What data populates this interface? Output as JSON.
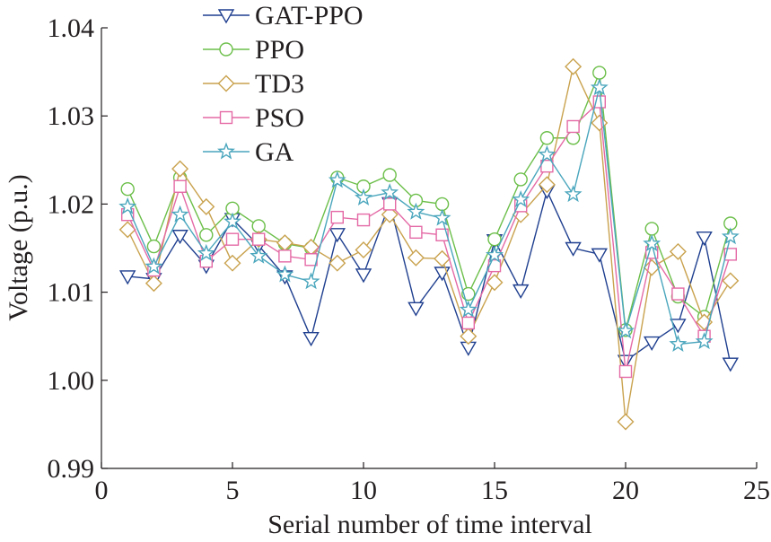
{
  "chart_data": {
    "type": "line",
    "xlabel": "Serial number of time interval",
    "ylabel": "Voltage (p.u.)",
    "xlim": [
      0,
      25
    ],
    "ylim": [
      0.99,
      1.04
    ],
    "x_ticks": [
      "0",
      "5",
      "10",
      "15",
      "20",
      "25"
    ],
    "y_ticks": [
      "0.99",
      "1.00",
      "1.01",
      "1.02",
      "1.03",
      "1.04"
    ],
    "grid": false,
    "legend_position": "top-left",
    "x": [
      1,
      2,
      3,
      4,
      5,
      6,
      7,
      8,
      9,
      10,
      11,
      12,
      13,
      14,
      15,
      16,
      17,
      18,
      19,
      20,
      21,
      22,
      23,
      24
    ],
    "series": [
      {
        "name": "GAT-PPO",
        "color": "#1f3f8f",
        "marker": "triangle-down",
        "values": [
          1.0118,
          1.0115,
          1.0164,
          1.013,
          1.0183,
          1.0153,
          1.0118,
          1.0048,
          1.0166,
          1.012,
          1.0201,
          1.0082,
          1.0122,
          1.0037,
          1.0159,
          1.0102,
          1.0215,
          1.015,
          1.0143,
          1.0022,
          1.0043,
          1.0063,
          1.0162,
          1.0019
        ]
      },
      {
        "name": "PPO",
        "color": "#6cbf4a",
        "marker": "circle",
        "values": [
          1.0217,
          1.0152,
          1.023,
          1.0165,
          1.0195,
          1.0175,
          1.0155,
          1.015,
          1.023,
          1.022,
          1.0233,
          1.0204,
          1.02,
          1.0098,
          1.016,
          1.0228,
          1.0275,
          1.0275,
          1.0349,
          1.0057,
          1.0172,
          1.0095,
          1.0072,
          1.0178
        ]
      },
      {
        "name": "TD3",
        "color": "#c9a24e",
        "marker": "diamond",
        "values": [
          1.0171,
          1.011,
          1.024,
          1.0197,
          1.0133,
          1.016,
          1.0156,
          1.0151,
          1.0133,
          1.0148,
          1.0188,
          1.0139,
          1.0138,
          1.005,
          1.0111,
          1.0188,
          1.0222,
          1.0356,
          1.0292,
          0.9953,
          1.0128,
          1.0146,
          1.0066,
          1.0113
        ]
      },
      {
        "name": "PSO",
        "color": "#e46aa6",
        "marker": "square",
        "values": [
          1.0188,
          1.0125,
          1.022,
          1.0135,
          1.016,
          1.016,
          1.0141,
          1.0137,
          1.0185,
          1.0182,
          1.02,
          1.0168,
          1.0165,
          1.0065,
          1.013,
          1.0198,
          1.0243,
          1.0288,
          1.0316,
          1.001,
          1.0145,
          1.0098,
          1.005,
          1.0143
        ]
      },
      {
        "name": "GA",
        "color": "#4aa6bd",
        "marker": "star",
        "values": [
          1.0197,
          1.0129,
          1.0188,
          1.0144,
          1.018,
          1.0141,
          1.012,
          1.0112,
          1.0227,
          1.0207,
          1.0213,
          1.0191,
          1.0184,
          1.008,
          1.0142,
          1.0205,
          1.0256,
          1.0211,
          1.0332,
          1.0056,
          1.0155,
          1.0041,
          1.0044,
          1.0163
        ]
      }
    ]
  }
}
